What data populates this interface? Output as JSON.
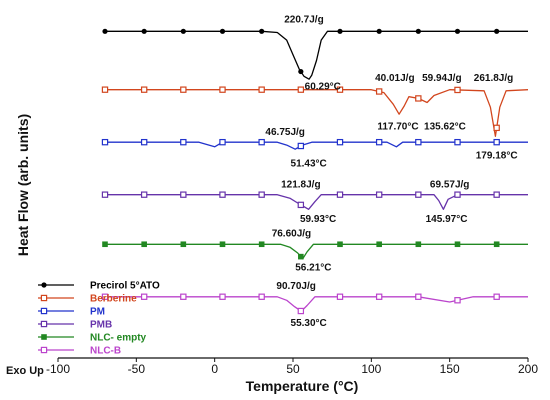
{
  "chart_data": {
    "type": "line",
    "title": "",
    "xlabel": "Temperature (°C)",
    "ylabel": "Heat Flow (arb. units)",
    "corner_note": "Exo Up",
    "xlim": [
      -100,
      200
    ],
    "xticks": [
      -100,
      -50,
      0,
      50,
      100,
      150,
      200
    ],
    "ylim": [
      0,
      6
    ],
    "legend_position": "bottom-left",
    "series": [
      {
        "name": "Precirol 5°ATO",
        "color": "#000000",
        "marker": "circle",
        "baseline": 5.6,
        "x": [
          -70,
          30,
          40,
          46,
          50,
          54,
          57,
          60.29,
          62,
          65,
          68,
          72,
          80,
          200
        ],
        "y": [
          5.6,
          5.6,
          5.58,
          5.45,
          5.2,
          4.95,
          4.83,
          4.78,
          4.85,
          5.1,
          5.45,
          5.6,
          5.6,
          5.6
        ]
      },
      {
        "name": "Berberine",
        "color": "#d2461e",
        "marker": "square-open",
        "baseline": 4.6,
        "x": [
          -70,
          100,
          108,
          114,
          117.7,
          121,
          124,
          130,
          135.62,
          140,
          150,
          172,
          176,
          179.18,
          182,
          186,
          200
        ],
        "y": [
          4.6,
          4.6,
          4.55,
          4.35,
          4.18,
          4.32,
          4.48,
          4.45,
          4.38,
          4.5,
          4.6,
          4.58,
          4.3,
          3.8,
          4.3,
          4.58,
          4.6
        ]
      },
      {
        "name": "PM",
        "color": "#2233cc",
        "marker": "square-open",
        "baseline": 3.7,
        "x": [
          -70,
          -10,
          -5,
          0,
          5,
          40,
          46,
          51.43,
          56,
          62,
          110,
          116,
          120,
          150,
          180,
          200
        ],
        "y": [
          3.7,
          3.7,
          3.66,
          3.62,
          3.7,
          3.7,
          3.65,
          3.58,
          3.65,
          3.7,
          3.7,
          3.62,
          3.7,
          3.7,
          3.7,
          3.7
        ]
      },
      {
        "name": "PMB",
        "color": "#6633aa",
        "marker": "square-open",
        "baseline": 2.8,
        "x": [
          -70,
          40,
          48,
          54,
          59.93,
          64,
          68,
          140,
          143,
          145.97,
          149,
          155,
          200
        ],
        "y": [
          2.8,
          2.8,
          2.74,
          2.64,
          2.55,
          2.68,
          2.8,
          2.8,
          2.7,
          2.55,
          2.72,
          2.8,
          2.8
        ]
      },
      {
        "name": "NLC- empty",
        "color": "#228822",
        "marker": "square-filled",
        "baseline": 1.95,
        "x": [
          -70,
          42,
          48,
          53,
          56.21,
          59,
          63,
          200
        ],
        "y": [
          1.95,
          1.95,
          1.9,
          1.8,
          1.7,
          1.82,
          1.95,
          1.95
        ]
      },
      {
        "name": "NLC-B",
        "color": "#bb44cc",
        "marker": "square-open",
        "baseline": 1.05,
        "x": [
          -70,
          40,
          46,
          51,
          55.3,
          59,
          64,
          130,
          150,
          165,
          200
        ],
        "y": [
          1.05,
          1.05,
          0.99,
          0.88,
          0.8,
          0.9,
          1.05,
          1.05,
          0.96,
          1.05,
          1.05
        ]
      }
    ],
    "annotations": [
      {
        "text": "220.7J/g",
        "x": 57,
        "y": 5.75
      },
      {
        "text": "60.29°C",
        "x": 69,
        "y": 4.6
      },
      {
        "text": "40.01J/g",
        "x": 115,
        "y": 4.75
      },
      {
        "text": "59.94J/g",
        "x": 145,
        "y": 4.75
      },
      {
        "text": "261.8J/g",
        "x": 178,
        "y": 4.75
      },
      {
        "text": "117.70°C",
        "x": 117,
        "y": 3.92
      },
      {
        "text": "135.62°C",
        "x": 147,
        "y": 3.92
      },
      {
        "text": "179.18°C",
        "x": 180,
        "y": 3.42
      },
      {
        "text": "46.75J/g",
        "x": 45,
        "y": 3.82
      },
      {
        "text": "51.43°C",
        "x": 60,
        "y": 3.28
      },
      {
        "text": "121.8J/g",
        "x": 55,
        "y": 2.92
      },
      {
        "text": "59.93°C",
        "x": 66,
        "y": 2.33
      },
      {
        "text": "69.57J/g",
        "x": 150,
        "y": 2.92
      },
      {
        "text": "145.97°C",
        "x": 148,
        "y": 2.33
      },
      {
        "text": "76.60J/g",
        "x": 49,
        "y": 2.08
      },
      {
        "text": "56.21°C",
        "x": 63,
        "y": 1.5
      },
      {
        "text": "90.70J/g",
        "x": 52,
        "y": 1.18
      },
      {
        "text": "55.30°C",
        "x": 60,
        "y": 0.55
      }
    ]
  }
}
